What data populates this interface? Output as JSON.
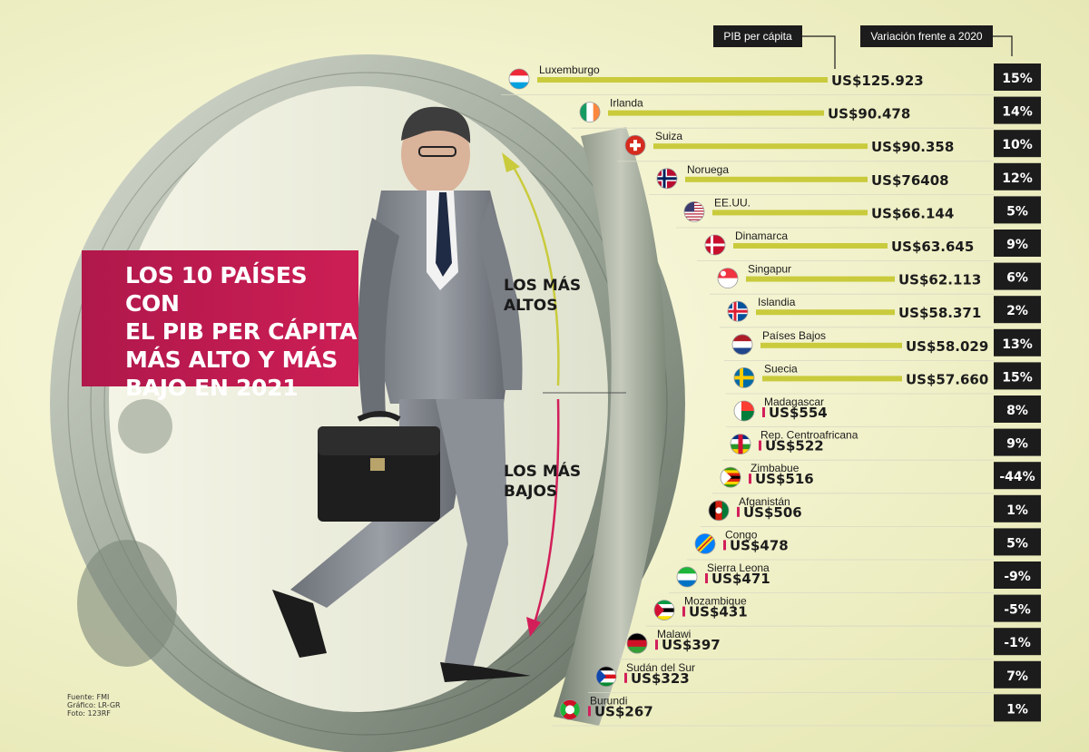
{
  "title": "LOS 10 PAÍSES CON EL PIB PER CÁPITA MÁS ALTO Y MÁS BAJO EN 2021",
  "title_lines": [
    "LOS 10 PAÍSES CON",
    "EL PIB PER CÁPITA",
    "MÁS ALTO Y MÁS",
    "BAJO EN 2021"
  ],
  "groups": {
    "top": [
      "LOS MÁS",
      "ALTOS"
    ],
    "bottom": [
      "LOS MÁS",
      "BAJOS"
    ]
  },
  "headers": {
    "pib": "PIB per cápita",
    "variation": "Variación frente a 2020"
  },
  "credits": [
    "Fuente: FMI",
    "Gráfico: LR-GR",
    "Foto: 123RF"
  ],
  "colors": {
    "high_bar": "#c9cb3c",
    "low_bar": "#d21f5a",
    "title_box": "#c21a52",
    "variation_box": "#1c1c1c"
  },
  "chart_data": {
    "type": "bar",
    "value_unit": "US$",
    "categories": [
      "Luxemburgo",
      "Irlanda",
      "Suiza",
      "Noruega",
      "EE.UU.",
      "Dinamarca",
      "Singapur",
      "Islandia",
      "Países Bajos",
      "Suecia",
      "Madagascar",
      "Rep. Centroafricana",
      "Zimbabue",
      "Afganistán",
      "Congo",
      "Sierra Leona",
      "Mozambique",
      "Malawi",
      "Sudán del Sur",
      "Burundi"
    ],
    "series": [
      {
        "name": "PIB per cápita",
        "values": [
          125923,
          90478,
          90358,
          76408,
          66144,
          63645,
          62113,
          58371,
          58029,
          57660,
          554,
          522,
          516,
          506,
          478,
          471,
          431,
          397,
          323,
          267
        ],
        "labels": [
          "US$125.923",
          "US$90.478",
          "US$90.358",
          "US$76408",
          "US$66.144",
          "US$63.645",
          "US$62.113",
          "US$58.371",
          "US$58.029",
          "US$57.660",
          "US$554",
          "US$522",
          "US$516",
          "US$506",
          "US$478",
          "US$471",
          "US$431",
          "US$397",
          "US$323",
          "US$267"
        ]
      },
      {
        "name": "Variación frente a 2020",
        "values": [
          15,
          14,
          10,
          12,
          5,
          9,
          6,
          2,
          13,
          15,
          8,
          9,
          -44,
          1,
          5,
          -9,
          -5,
          -1,
          7,
          1
        ],
        "labels": [
          "15%",
          "14%",
          "10%",
          "12%",
          "5%",
          "9%",
          "6%",
          "2%",
          "13%",
          "15%",
          "8%",
          "9%",
          "-44%",
          "1%",
          "5%",
          "-9%",
          "-5%",
          "-1%",
          "7%",
          "1%"
        ]
      }
    ],
    "groups": [
      {
        "label": "LOS MÁS ALTOS",
        "range": [
          0,
          9
        ]
      },
      {
        "label": "LOS MÁS BAJOS",
        "range": [
          10,
          19
        ]
      }
    ],
    "flags": [
      "flag-luxembourg",
      "flag-ireland",
      "flag-switzerland",
      "flag-norway",
      "flag-usa",
      "flag-denmark",
      "flag-singapore",
      "flag-iceland",
      "flag-netherlands",
      "flag-sweden",
      "flag-madagascar",
      "flag-central-african-republic",
      "flag-zimbabwe",
      "flag-afghanistan",
      "flag-congo",
      "flag-sierra-leone",
      "flag-mozambique",
      "flag-malawi",
      "flag-south-sudan",
      "flag-burundi"
    ]
  }
}
